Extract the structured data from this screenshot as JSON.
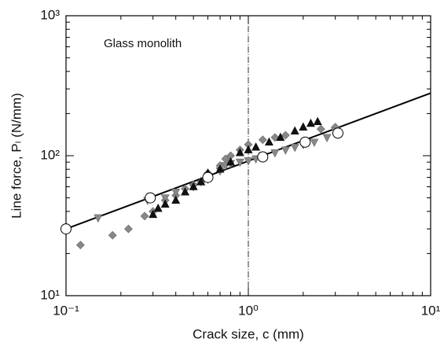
{
  "chart_data": {
    "type": "scatter",
    "x_label": "Crack size, c (mm)",
    "y_label": "Line force, Pₗ (N/mm)",
    "annotation": "Glass monolith",
    "xscale": "log",
    "yscale": "log",
    "xlim": [
      0.1,
      10
    ],
    "ylim": [
      10,
      1000
    ],
    "xticks": [
      {
        "value": 0.1,
        "label": "10⁻¹"
      },
      {
        "value": 1,
        "label": "10⁰"
      },
      {
        "value": 10,
        "label": "10¹"
      }
    ],
    "yticks": [
      {
        "value": 10,
        "label": "10¹"
      },
      {
        "value": 100,
        "label": "10²"
      },
      {
        "value": 1000,
        "label": "10³"
      }
    ],
    "vline": 1,
    "fit": {
      "color": "#000000",
      "x": [
        0.1,
        10
      ],
      "values": [
        30,
        280
      ]
    },
    "series": [
      {
        "marker": "diamond",
        "color": "#888888",
        "x": [
          0.12,
          0.18,
          0.22,
          0.27,
          0.3,
          0.35,
          0.4,
          0.45,
          0.5,
          0.55,
          0.6,
          0.7,
          0.75,
          0.8,
          0.9,
          1.0,
          1.2,
          1.4,
          1.6,
          2.5,
          3.0
        ],
        "values": [
          23,
          27,
          30,
          37,
          40,
          48,
          52,
          58,
          62,
          65,
          75,
          85,
          95,
          100,
          110,
          120,
          130,
          135,
          140,
          155,
          160
        ]
      },
      {
        "marker": "triangle-down",
        "color": "#888888",
        "x": [
          0.15,
          0.28,
          0.35,
          0.4,
          0.5,
          0.6,
          0.7,
          0.75,
          0.8,
          0.9,
          1.0,
          1.1,
          1.2,
          1.4,
          1.6,
          1.8,
          2.0,
          2.3,
          2.7,
          3.0
        ],
        "values": [
          36,
          48,
          50,
          55,
          60,
          68,
          78,
          85,
          88,
          90,
          92,
          95,
          100,
          105,
          110,
          115,
          120,
          125,
          135,
          150
        ]
      },
      {
        "marker": "triangle-up",
        "color": "#111111",
        "x": [
          0.3,
          0.32,
          0.35,
          0.4,
          0.45,
          0.5,
          0.55,
          0.6,
          0.7,
          0.8,
          0.9,
          1.0,
          1.1,
          1.3,
          1.5,
          1.8,
          2.0,
          2.2,
          2.4
        ],
        "values": [
          38,
          42,
          45,
          48,
          55,
          60,
          65,
          75,
          80,
          90,
          105,
          110,
          115,
          125,
          135,
          150,
          160,
          170,
          175
        ]
      },
      {
        "marker": "circle",
        "color": "#ffffff",
        "x": [
          0.1,
          0.29,
          0.6,
          1.2,
          2.05,
          3.1
        ],
        "values": [
          30,
          50,
          70,
          98,
          125,
          145
        ]
      }
    ]
  }
}
